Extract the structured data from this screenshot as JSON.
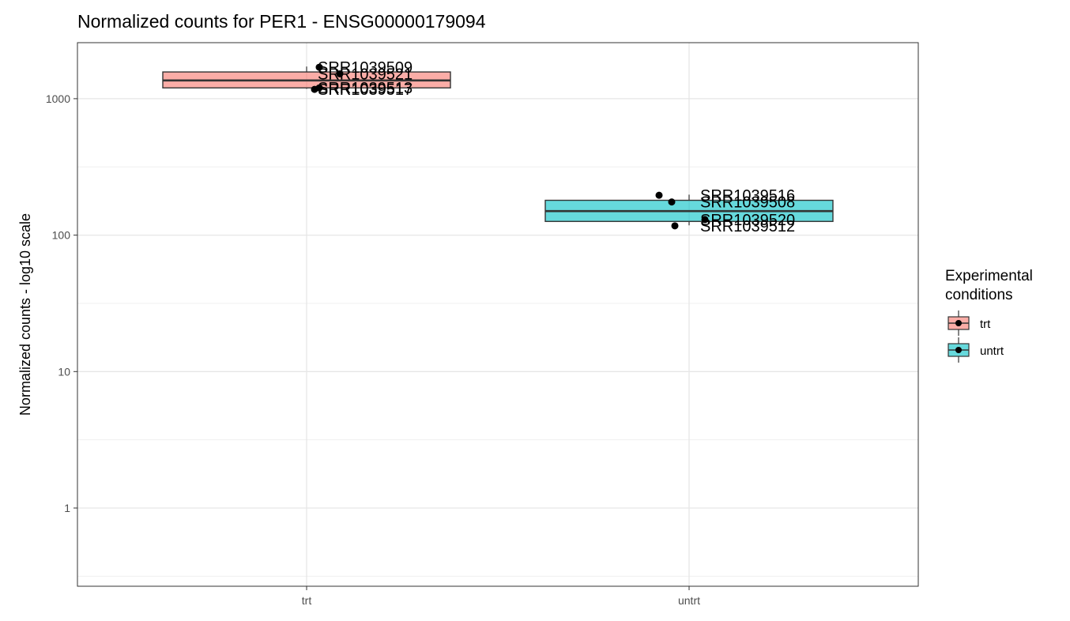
{
  "chart_data": {
    "type": "boxplot",
    "title": "Normalized counts for PER1 - ENSG00000179094",
    "xlabel": "",
    "ylabel": "Normalized counts - log10 scale",
    "y_scale": "log10",
    "ylim": [
      0.3,
      2500
    ],
    "y_ticks": [
      {
        "value": 1,
        "label": "1"
      },
      {
        "value": 10,
        "label": "10"
      },
      {
        "value": 100,
        "label": "100"
      },
      {
        "value": 1000,
        "label": "1000"
      }
    ],
    "categories": [
      "trt",
      "untrt"
    ],
    "grid": true,
    "legend": {
      "title_lines": [
        "Experimental",
        "conditions"
      ],
      "position": "right",
      "entries": [
        {
          "label": "trt",
          "color": "#F8766D"
        },
        {
          "label": "untrt",
          "color": "#00BFC4"
        }
      ]
    },
    "boxes": [
      {
        "category": "trt",
        "color": "#F8766D",
        "whisker_low": 1180,
        "q1": 1200,
        "median": 1360,
        "q3": 1570,
        "whisker_high": 1720
      },
      {
        "category": "untrt",
        "color": "#00BFC4",
        "whisker_low": 118,
        "q1": 126,
        "median": 150,
        "q3": 180,
        "whisker_high": 198
      }
    ],
    "points": [
      {
        "category": "trt",
        "sample": "SRR1039509",
        "value": 1700
      },
      {
        "category": "trt",
        "sample": "SRR1039521",
        "value": 1520
      },
      {
        "category": "trt",
        "sample": "SRR1039513",
        "value": 1200
      },
      {
        "category": "trt",
        "sample": "SRR1039517",
        "value": 1170
      },
      {
        "category": "untrt",
        "sample": "SRR1039516",
        "value": 196
      },
      {
        "category": "untrt",
        "sample": "SRR1039508",
        "value": 175
      },
      {
        "category": "untrt",
        "sample": "SRR1039520",
        "value": 130
      },
      {
        "category": "untrt",
        "sample": "SRR1039512",
        "value": 117
      }
    ]
  }
}
